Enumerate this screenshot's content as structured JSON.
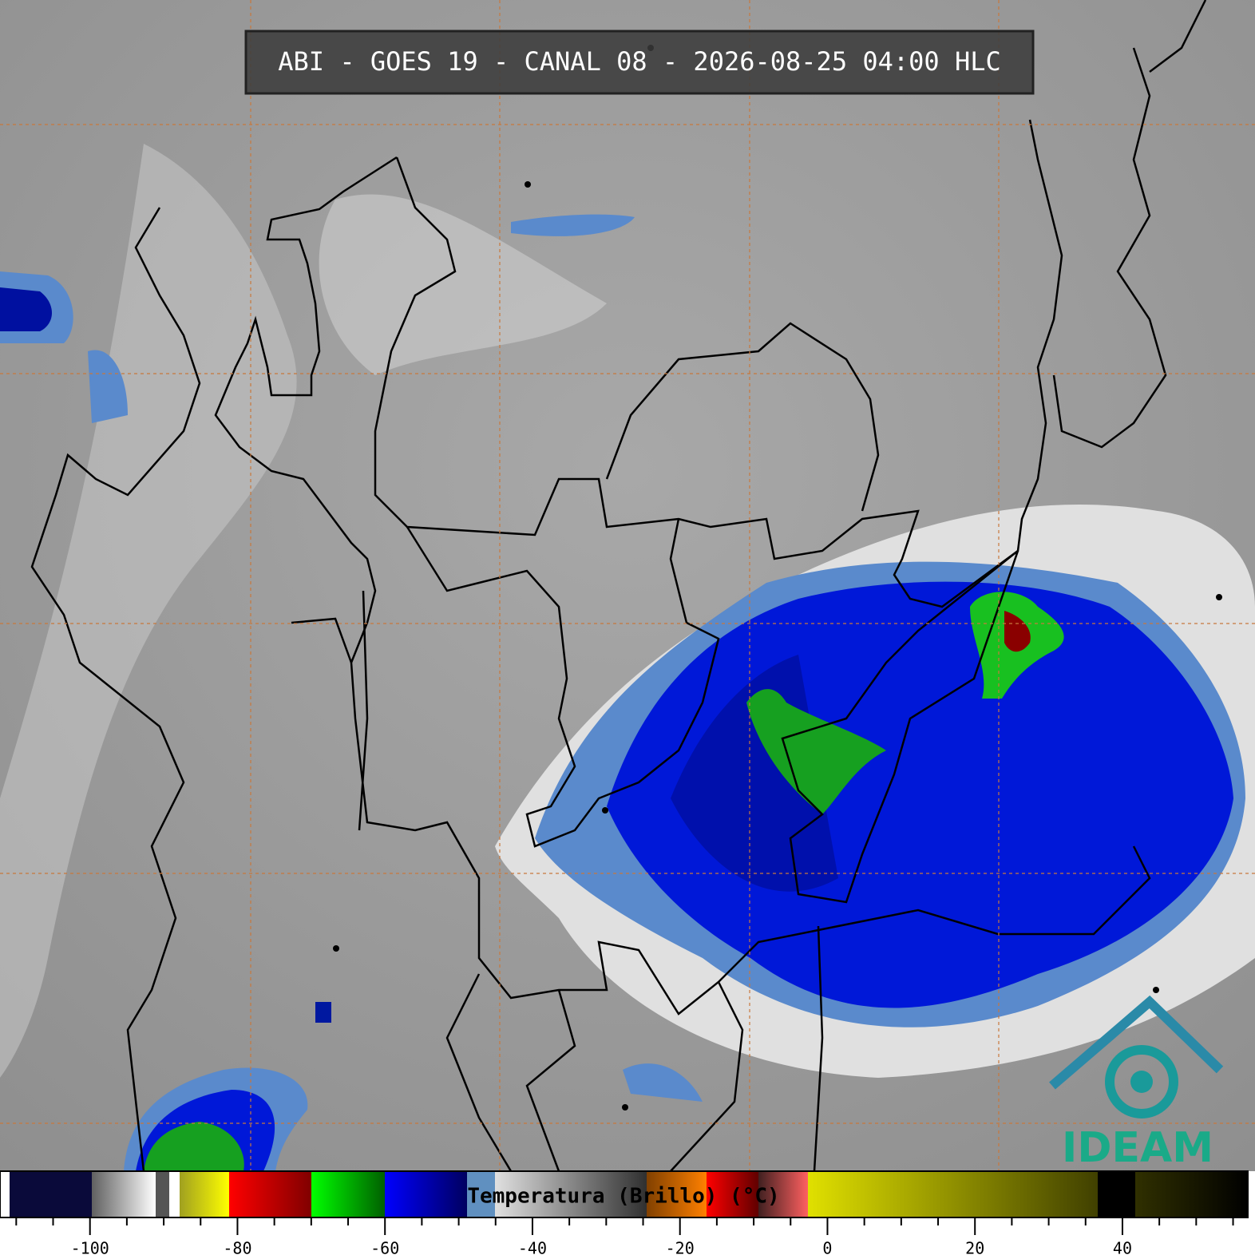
{
  "title": "ABI - GOES 19 - CANAL 08 - 2026-08-25 04:00 HLC",
  "logo": "IDEAM",
  "colorbar": {
    "label": "Temperatura (Brillo) (°C)",
    "range": [
      -112.2,
      57
    ],
    "ticks": [
      -100,
      -80,
      -60,
      -40,
      -20,
      0,
      20,
      40
    ],
    "minor_ticks": [
      -110,
      -105,
      -95,
      -90,
      -85,
      -75,
      -70,
      -65,
      -55,
      -50,
      -45,
      -35,
      -30,
      -25,
      -15,
      -10,
      -5,
      5,
      10,
      15,
      25,
      30,
      35,
      45,
      50,
      55
    ]
  }
}
